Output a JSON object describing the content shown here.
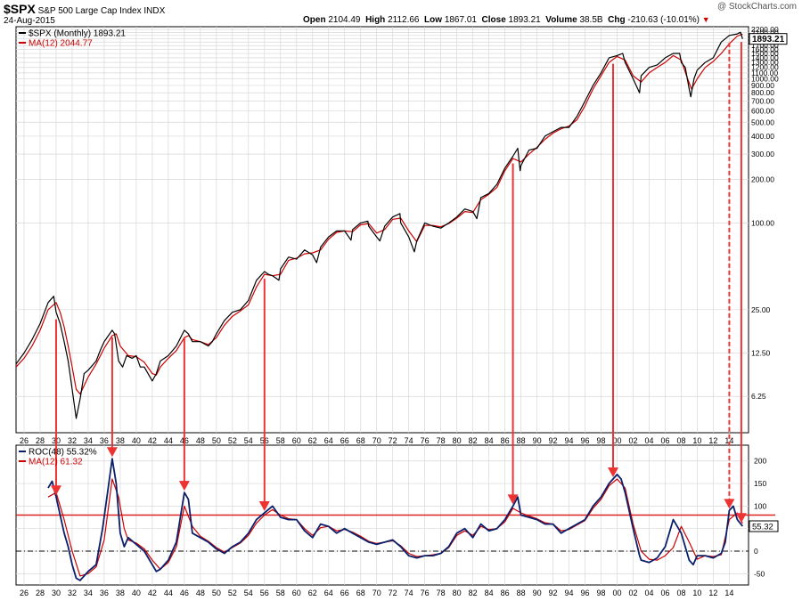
{
  "header": {
    "symbol": "$SPX",
    "name": "S&P 500 Large Cap Index",
    "exchange": "INDX",
    "date": "24-Aug-2015",
    "watermark": "@ StockCharts.com",
    "open_label": "Open",
    "open": "2104.49",
    "high_label": "High",
    "high": "2112.66",
    "low_label": "Low",
    "low": "1867.01",
    "close_label": "Close",
    "close": "1893.21",
    "volume_label": "Volume",
    "volume": "38.5B",
    "chg_label": "Chg",
    "chg": "-210.63 (-10.01%)",
    "chg_icon": "down-triangle-icon"
  },
  "colors": {
    "price_line": "#000000",
    "ma_line": "#cc0000",
    "roc_line": "#0b1f6b",
    "ref_line": "#dd2222",
    "arrow": "#ee3333",
    "grid": "#d8d8d8",
    "frame": "#000000"
  },
  "chart_data": [
    {
      "type": "line",
      "scale": "log",
      "legend": [
        {
          "name": "$SPX (Monthly) 1893.21",
          "color": "#000000"
        },
        {
          "name": "MA(12) 2044.77",
          "color": "#cc0000"
        }
      ],
      "legend_position": "top-left",
      "ylim": [
        3.5,
        2300
      ],
      "y_ticks": [
        6.25,
        12.5,
        25,
        100,
        200,
        300,
        400,
        500,
        600,
        700,
        800,
        900,
        1000,
        1100,
        1200,
        1300,
        1400,
        1500,
        1600,
        1700,
        1800,
        1900,
        2000,
        2100,
        2200
      ],
      "y_tick_labels": [
        "6.25",
        "12.50",
        "25.00",
        "100.00",
        "200.00",
        "300.00",
        "400.00",
        "500.00",
        "600.00",
        "700.00",
        "800.00",
        "900.00",
        "1000.00",
        "1100.00",
        "1200.00",
        "1300.00",
        "1400.00",
        "1500.00",
        "1600.00",
        "1700.00",
        "1800.00",
        "1900.00",
        "2000.00",
        "2100.00",
        "2200.00"
      ],
      "last_value_label": "1893.21",
      "grid": true,
      "series": [
        {
          "name": "$SPX (Monthly)",
          "x": [
            1925.0,
            1926.0,
            1927.0,
            1928.0,
            1929.0,
            1929.7,
            1930.0,
            1930.5,
            1931.0,
            1931.5,
            1932.0,
            1932.5,
            1933.0,
            1933.5,
            1934.0,
            1935.0,
            1935.5,
            1936.0,
            1937.0,
            1937.3,
            1937.8,
            1938.3,
            1938.8,
            1939.5,
            1940.0,
            1940.5,
            1941.0,
            1942.0,
            1942.5,
            1943.0,
            1944.0,
            1945.0,
            1946.0,
            1946.5,
            1947.0,
            1948.0,
            1949.0,
            1949.5,
            1950.0,
            1951.0,
            1952.0,
            1953.0,
            1954.0,
            1955.0,
            1956.0,
            1956.5,
            1957.0,
            1957.8,
            1958.0,
            1959.0,
            1960.0,
            1961.0,
            1962.0,
            1962.5,
            1963.0,
            1964.0,
            1965.0,
            1966.0,
            1966.8,
            1967.0,
            1968.0,
            1968.9,
            1969.0,
            1970.0,
            1970.4,
            1971.0,
            1972.0,
            1972.9,
            1973.0,
            1974.0,
            1974.7,
            1975.0,
            1976.0,
            1977.0,
            1978.0,
            1979.0,
            1980.0,
            1981.0,
            1982.0,
            1982.5,
            1983.0,
            1984.0,
            1985.0,
            1986.0,
            1987.0,
            1987.6,
            1987.9,
            1988.0,
            1989.0,
            1990.0,
            1991.0,
            1992.0,
            1993.0,
            1994.0,
            1995.0,
            1996.0,
            1997.0,
            1998.0,
            1999.0,
            2000.0,
            2000.7,
            2001.0,
            2002.0,
            2002.8,
            2003.0,
            2004.0,
            2005.0,
            2006.0,
            2007.0,
            2007.8,
            2008.0,
            2008.5,
            2009.0,
            2009.2,
            2009.6,
            2010.0,
            2011.0,
            2012.0,
            2013.0,
            2014.0,
            2015.0,
            2015.4,
            2015.65
          ],
          "values": [
            10.5,
            12.5,
            15.5,
            20,
            28,
            31,
            24,
            20,
            15,
            11,
            7,
            4.4,
            6,
            9,
            9.5,
            11,
            13,
            15,
            18,
            17,
            11,
            10,
            12,
            11.5,
            12,
            10,
            10,
            8,
            9,
            11,
            12,
            14,
            18,
            17,
            15,
            15,
            14,
            15,
            17,
            21,
            24,
            25,
            29,
            40,
            46,
            44,
            43,
            40,
            48,
            58,
            56,
            65,
            60,
            53,
            68,
            80,
            88,
            88,
            76,
            90,
            100,
            103,
            95,
            80,
            75,
            95,
            110,
            116,
            100,
            80,
            63,
            75,
            100,
            95,
            92,
            100,
            110,
            125,
            120,
            107,
            150,
            160,
            185,
            240,
            290,
            330,
            230,
            250,
            320,
            330,
            400,
            430,
            460,
            460,
            550,
            700,
            900,
            1100,
            1400,
            1450,
            1500,
            1300,
            1000,
            800,
            1050,
            1200,
            1250,
            1400,
            1500,
            1500,
            1300,
            1200,
            850,
            750,
            1000,
            1150,
            1300,
            1400,
            1800,
            2000,
            2050,
            2105,
            1893.21
          ]
        },
        {
          "name": "MA(12)",
          "x": [
            1925.0,
            1926.0,
            1927.0,
            1928.0,
            1929.0,
            1930.0,
            1930.5,
            1931.0,
            1931.5,
            1932.0,
            1932.5,
            1933.0,
            1934.0,
            1935.0,
            1936.0,
            1937.0,
            1937.5,
            1938.0,
            1939.0,
            1940.0,
            1941.0,
            1942.0,
            1942.5,
            1943.0,
            1944.0,
            1945.0,
            1946.0,
            1946.5,
            1947.0,
            1948.0,
            1949.0,
            1950.0,
            1951.0,
            1952.0,
            1953.0,
            1954.0,
            1955.0,
            1956.0,
            1957.0,
            1958.0,
            1959.0,
            1960.0,
            1961.0,
            1962.0,
            1963.0,
            1964.0,
            1965.0,
            1966.0,
            1967.0,
            1968.0,
            1969.0,
            1970.0,
            1971.0,
            1972.0,
            1973.0,
            1974.0,
            1975.0,
            1976.0,
            1977.0,
            1978.0,
            1979.0,
            1980.0,
            1981.0,
            1982.0,
            1983.0,
            1984.0,
            1985.0,
            1986.0,
            1987.0,
            1988.0,
            1989.0,
            1990.0,
            1991.0,
            1992.0,
            1993.0,
            1994.0,
            1995.0,
            1996.0,
            1997.0,
            1998.0,
            1999.0,
            2000.0,
            2001.0,
            2002.0,
            2003.0,
            2004.0,
            2005.0,
            2006.0,
            2007.0,
            2008.0,
            2008.8,
            2009.3,
            2010.0,
            2011.0,
            2012.0,
            2013.0,
            2014.0,
            2015.0,
            2015.65
          ],
          "values": [
            10,
            11.5,
            14,
            18,
            25,
            28,
            24,
            19,
            14,
            10,
            7,
            6.5,
            8.5,
            10.5,
            13.5,
            16.5,
            17,
            14,
            12,
            11.8,
            10.8,
            9,
            8.8,
            10,
            11.5,
            13,
            16,
            16.5,
            15.5,
            15,
            14.3,
            16,
            19.5,
            22.5,
            24.5,
            27,
            36,
            44,
            43,
            44,
            55,
            57,
            61,
            62,
            65,
            77,
            86,
            88,
            87,
            97,
            99,
            85,
            90,
            106,
            108,
            88,
            74,
            96,
            96,
            94,
            99,
            108,
            120,
            118,
            145,
            158,
            176,
            230,
            280,
            265,
            300,
            335,
            380,
            420,
            450,
            470,
            520,
            650,
            850,
            1050,
            1300,
            1430,
            1350,
            1050,
            950,
            1100,
            1200,
            1300,
            1450,
            1350,
            1000,
            850,
            1000,
            1200,
            1320,
            1500,
            1750,
            1980,
            2044.77
          ]
        }
      ]
    },
    {
      "type": "line",
      "legend": [
        {
          "name": "ROC(48) 55.32%",
          "color": "#0b1f6b"
        },
        {
          "name": "MA(12) 61.32",
          "color": "#cc0000"
        }
      ],
      "legend_position": "top-left",
      "ylim": [
        -75,
        235
      ],
      "y_ticks": [
        -50,
        0,
        50,
        100,
        150,
        200
      ],
      "y_tick_labels": [
        "-50",
        "0",
        "50",
        "100",
        "150",
        "200"
      ],
      "last_value_label": "55.32",
      "reference_line": 80,
      "zero_line": 0,
      "grid": true,
      "x_ticks": [
        1926,
        1928,
        1930,
        1932,
        1934,
        1936,
        1938,
        1940,
        1942,
        1944,
        1946,
        1948,
        1950,
        1952,
        1954,
        1956,
        1958,
        1960,
        1962,
        1964,
        1966,
        1968,
        1970,
        1972,
        1974,
        1976,
        1978,
        1980,
        1982,
        1984,
        1986,
        1988,
        1990,
        1992,
        1994,
        1996,
        1998,
        2000,
        2002,
        2004,
        2006,
        2008,
        2010,
        2012,
        2014
      ],
      "x_tick_labels": [
        "26",
        "28",
        "30",
        "32",
        "34",
        "36",
        "38",
        "40",
        "42",
        "44",
        "46",
        "48",
        "50",
        "52",
        "54",
        "56",
        "58",
        "60",
        "62",
        "64",
        "66",
        "68",
        "70",
        "72",
        "74",
        "76",
        "78",
        "80",
        "82",
        "84",
        "86",
        "88",
        "90",
        "92",
        "94",
        "96",
        "98",
        "00",
        "02",
        "04",
        "06",
        "08",
        "10",
        "12",
        "14"
      ],
      "xlim": [
        1925,
        2016.4
      ],
      "series": [
        {
          "name": "ROC(48)",
          "x": [
            1929.0,
            1929.5,
            1930.0,
            1930.5,
            1931.0,
            1931.5,
            1932.0,
            1932.5,
            1933.0,
            1933.5,
            1934.0,
            1935.0,
            1935.8,
            1936.5,
            1937.0,
            1937.5,
            1938.0,
            1938.5,
            1939.0,
            1940.0,
            1941.0,
            1942.0,
            1942.5,
            1943.0,
            1944.0,
            1945.0,
            1946.0,
            1946.5,
            1947.0,
            1948.0,
            1949.0,
            1950.0,
            1951.0,
            1952.0,
            1953.0,
            1954.0,
            1955.0,
            1956.0,
            1957.0,
            1958.0,
            1959.0,
            1960.0,
            1961.0,
            1962.0,
            1963.0,
            1964.0,
            1965.0,
            1966.0,
            1967.0,
            1968.0,
            1969.0,
            1970.0,
            1971.0,
            1972.0,
            1973.0,
            1974.0,
            1975.0,
            1976.0,
            1977.0,
            1978.0,
            1979.0,
            1980.0,
            1981.0,
            1982.0,
            1983.0,
            1984.0,
            1985.0,
            1986.0,
            1987.0,
            1987.6,
            1988.0,
            1989.0,
            1990.0,
            1991.0,
            1992.0,
            1993.0,
            1994.0,
            1995.0,
            1996.0,
            1997.0,
            1998.0,
            1999.0,
            2000.0,
            2000.5,
            2001.0,
            2002.0,
            2002.8,
            2003.0,
            2004.0,
            2005.0,
            2006.0,
            2007.0,
            2008.0,
            2009.0,
            2009.5,
            2010.0,
            2011.0,
            2012.0,
            2013.0,
            2013.5,
            2014.0,
            2014.5,
            2015.0,
            2015.65
          ],
          "values": [
            140,
            155,
            120,
            80,
            40,
            10,
            -30,
            -60,
            -65,
            -55,
            -45,
            -30,
            50,
            140,
            205,
            150,
            40,
            10,
            30,
            15,
            0,
            -30,
            -45,
            -40,
            -20,
            20,
            130,
            115,
            40,
            30,
            20,
            5,
            -5,
            10,
            20,
            40,
            70,
            85,
            100,
            75,
            70,
            70,
            45,
            30,
            60,
            55,
            40,
            50,
            40,
            30,
            20,
            15,
            20,
            25,
            10,
            -10,
            -15,
            -10,
            -10,
            -5,
            10,
            40,
            50,
            30,
            60,
            45,
            50,
            70,
            100,
            120,
            80,
            75,
            70,
            60,
            60,
            40,
            50,
            60,
            70,
            100,
            120,
            150,
            170,
            160,
            130,
            50,
            -10,
            -20,
            -25,
            -15,
            10,
            70,
            40,
            -20,
            -30,
            -10,
            -10,
            -15,
            -5,
            20,
            90,
            100,
            70,
            55.32
          ]
        },
        {
          "name": "MA(12)",
          "x": [
            1929.0,
            1930.0,
            1931.0,
            1932.0,
            1933.0,
            1934.0,
            1935.0,
            1936.0,
            1937.0,
            1937.8,
            1938.5,
            1939.0,
            1940.0,
            1941.0,
            1942.0,
            1943.0,
            1944.0,
            1945.0,
            1946.0,
            1947.0,
            1948.0,
            1949.0,
            1950.0,
            1951.0,
            1952.0,
            1953.0,
            1954.0,
            1955.0,
            1956.0,
            1957.0,
            1958.0,
            1959.0,
            1960.0,
            1961.0,
            1962.0,
            1963.0,
            1964.0,
            1965.0,
            1966.0,
            1967.0,
            1968.0,
            1969.0,
            1970.0,
            1971.0,
            1972.0,
            1973.0,
            1974.0,
            1975.0,
            1976.0,
            1977.0,
            1978.0,
            1979.0,
            1980.0,
            1981.0,
            1982.0,
            1983.0,
            1984.0,
            1985.0,
            1986.0,
            1987.0,
            1988.0,
            1989.0,
            1990.0,
            1991.0,
            1992.0,
            1993.0,
            1994.0,
            1995.0,
            1996.0,
            1997.0,
            1998.0,
            1999.0,
            2000.0,
            2001.0,
            2002.0,
            2003.0,
            2004.0,
            2005.0,
            2006.0,
            2007.0,
            2008.0,
            2009.0,
            2010.0,
            2011.0,
            2012.0,
            2013.0,
            2014.0,
            2015.0,
            2015.65
          ],
          "values": [
            120,
            130,
            70,
            0,
            -55,
            -50,
            -35,
            25,
            160,
            120,
            50,
            25,
            18,
            5,
            -20,
            -40,
            -25,
            10,
            100,
            55,
            33,
            22,
            8,
            -2,
            8,
            18,
            35,
            62,
            80,
            92,
            80,
            72,
            70,
            50,
            35,
            52,
            55,
            45,
            48,
            42,
            33,
            22,
            17,
            20,
            23,
            12,
            -5,
            -12,
            -10,
            -8,
            -5,
            8,
            35,
            45,
            35,
            55,
            48,
            50,
            65,
            95,
            85,
            78,
            72,
            63,
            60,
            45,
            48,
            58,
            68,
            95,
            115,
            145,
            160,
            140,
            60,
            0,
            -18,
            -20,
            -10,
            8,
            55,
            20,
            -18,
            -10,
            -12,
            -8,
            70,
            85,
            61.32
          ]
        }
      ]
    }
  ],
  "annotations": {
    "arrow_years": [
      1930.0,
      1937.0,
      1946.0,
      1956.0,
      1987.0,
      1999.5,
      2014.0,
      2015.5
    ],
    "dashed_arrow_years": [
      2014.0
    ],
    "note": ""
  }
}
